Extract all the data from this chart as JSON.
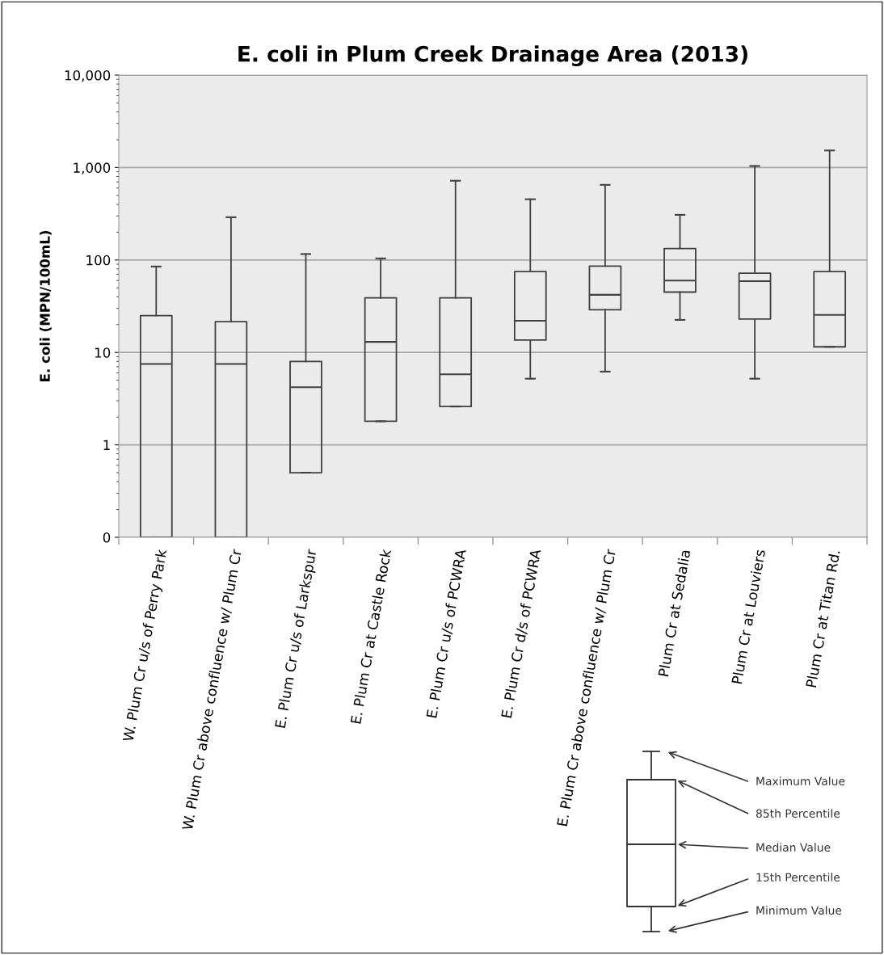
{
  "chart_data": {
    "type": "box",
    "title": "E. coli in Plum Creek Drainage Area (2013)",
    "ylabel": "E. coli (MPN/100mL)",
    "categories": [
      "W. Plum Cr u/s of Perry Park",
      "W. Plum Cr above confluence w/ Plum Cr",
      "E. Plum Cr u/s of Larkspur",
      "E. Plum Cr at Castle Rock",
      "E. Plum Cr u/s of PCWRA",
      "E. Plum Cr d/s of PCWRA",
      "E. Plum Cr above confluence w/ Plum Cr",
      "Plum Cr at Sedalia",
      "Plum Cr at Louviers",
      "Plum Cr at Titan Rd."
    ],
    "boxes": [
      {
        "low": 0.1,
        "q1": 0.1,
        "median": 7.5,
        "q3": 25,
        "high": 85
      },
      {
        "low": 0.1,
        "q1": 0.1,
        "median": 7.5,
        "q3": 21.5,
        "high": 290
      },
      {
        "low": 0.5,
        "q1": 0.5,
        "median": 4.2,
        "q3": 8,
        "high": 116
      },
      {
        "low": 1.8,
        "q1": 1.8,
        "median": 13,
        "q3": 39,
        "high": 104
      },
      {
        "low": 2.6,
        "q1": 2.6,
        "median": 5.8,
        "q3": 39,
        "high": 720
      },
      {
        "low": 5.2,
        "q1": 13.6,
        "median": 22,
        "q3": 75,
        "high": 454
      },
      {
        "low": 6.2,
        "q1": 29,
        "median": 42,
        "q3": 86,
        "high": 650
      },
      {
        "low": 22.5,
        "q1": 45,
        "median": 60,
        "q3": 133,
        "high": 308
      },
      {
        "low": 5.2,
        "q1": 23,
        "median": 59,
        "q3": 72,
        "high": 1040
      },
      {
        "low": 11.5,
        "q1": 11.5,
        "median": 25.5,
        "q3": 75,
        "high": 1530
      }
    ],
    "log": "y",
    "ylim": [
      0.1,
      10000
    ],
    "yticks": [
      {
        "value": 0.1,
        "label": "0"
      },
      1,
      10,
      100,
      {
        "value": 1000,
        "label": "1,000"
      },
      {
        "value": 10000,
        "label": "10,000"
      }
    ],
    "grid": "y",
    "annotations": [
      "Maximum Value",
      "85th Percentile",
      "Median Value",
      "15th Percentile",
      "Minimum Value"
    ]
  }
}
